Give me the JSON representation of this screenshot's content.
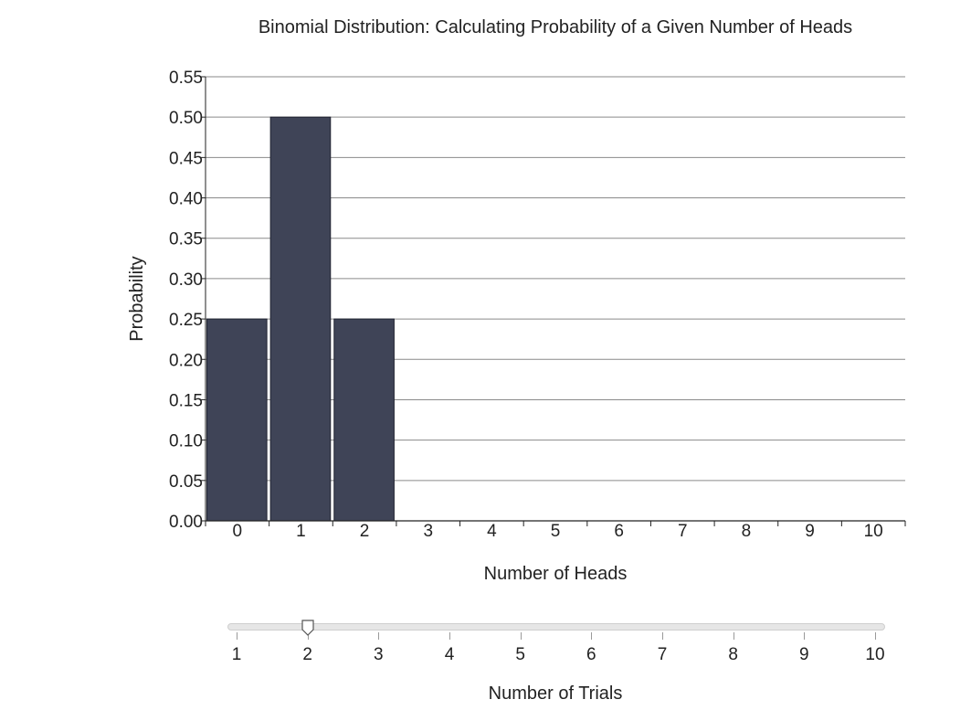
{
  "chart_data": {
    "type": "bar",
    "title": "Binomial Distribution: Calculating Probability of a Given Number of Heads",
    "xlabel": "Number of Heads",
    "ylabel": "Probability",
    "categories": [
      "0",
      "1",
      "2",
      "3",
      "4",
      "5",
      "6",
      "7",
      "8",
      "9",
      "10"
    ],
    "values": [
      0.25,
      0.5,
      0.25,
      0,
      0,
      0,
      0,
      0,
      0,
      0,
      0
    ],
    "ylim": [
      0,
      0.55
    ],
    "yticks": [
      "0.00",
      "0.05",
      "0.10",
      "0.15",
      "0.20",
      "0.25",
      "0.30",
      "0.35",
      "0.40",
      "0.45",
      "0.50",
      "0.55"
    ],
    "grid": true,
    "bar_color": "#3f4457"
  },
  "slider": {
    "label": "Number of Trials",
    "min": 1,
    "max": 10,
    "value": 2,
    "ticks": [
      "1",
      "2",
      "3",
      "4",
      "5",
      "6",
      "7",
      "8",
      "9",
      "10"
    ]
  }
}
